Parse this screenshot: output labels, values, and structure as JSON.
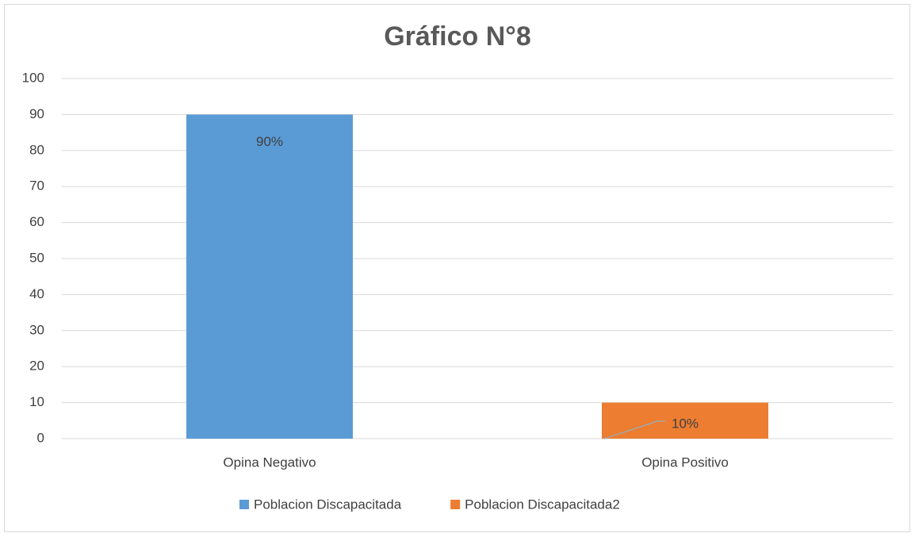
{
  "chart_data": {
    "type": "bar",
    "title": "Gráfico N°8",
    "categories": [
      "Opina Negativo",
      "Opina Positivo"
    ],
    "series": [
      {
        "name": "Poblacion Discapacitada",
        "color": "#5b9bd5",
        "values": [
          90,
          null
        ],
        "value_labels": [
          "90%",
          null
        ]
      },
      {
        "name": "Poblacion Discapacitada2",
        "color": "#ed7d31",
        "values": [
          null,
          10
        ],
        "value_labels": [
          null,
          "10%"
        ]
      }
    ],
    "ylim": [
      0,
      100
    ],
    "yticks": [
      0,
      10,
      20,
      30,
      40,
      50,
      60,
      70,
      80,
      90,
      100
    ],
    "grid": true,
    "legend": "bottom"
  }
}
